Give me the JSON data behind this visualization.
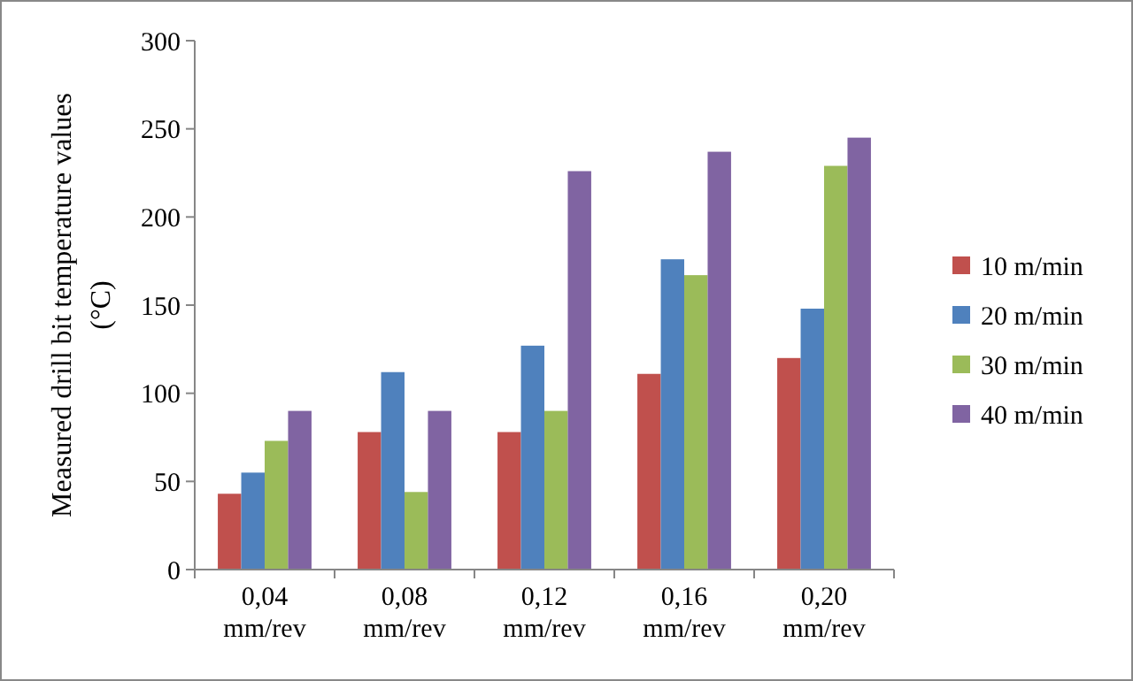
{
  "chart_data": {
    "type": "bar",
    "ylabel": "Measured drill bit temperature values (°C)",
    "categories": [
      "0,04 mm/rev",
      "0,08 mm/rev",
      "0,12 mm/rev",
      "0,16 mm/rev",
      "0,20 mm/rev"
    ],
    "series": [
      {
        "name": "10 m/min",
        "color": "#c0504d",
        "values": [
          43,
          78,
          78,
          111,
          120
        ]
      },
      {
        "name": "20 m/min",
        "color": "#4f81bd",
        "values": [
          55,
          112,
          127,
          176,
          148
        ]
      },
      {
        "name": "30 m/min",
        "color": "#9bbb59",
        "values": [
          73,
          44,
          90,
          167,
          229
        ]
      },
      {
        "name": "40 m/min",
        "color": "#8064a2",
        "values": [
          90,
          90,
          226,
          237,
          245
        ]
      }
    ],
    "ylim": [
      0,
      300
    ],
    "yticks": [
      0,
      50,
      100,
      150,
      200,
      250,
      300
    ],
    "legend": "right"
  }
}
